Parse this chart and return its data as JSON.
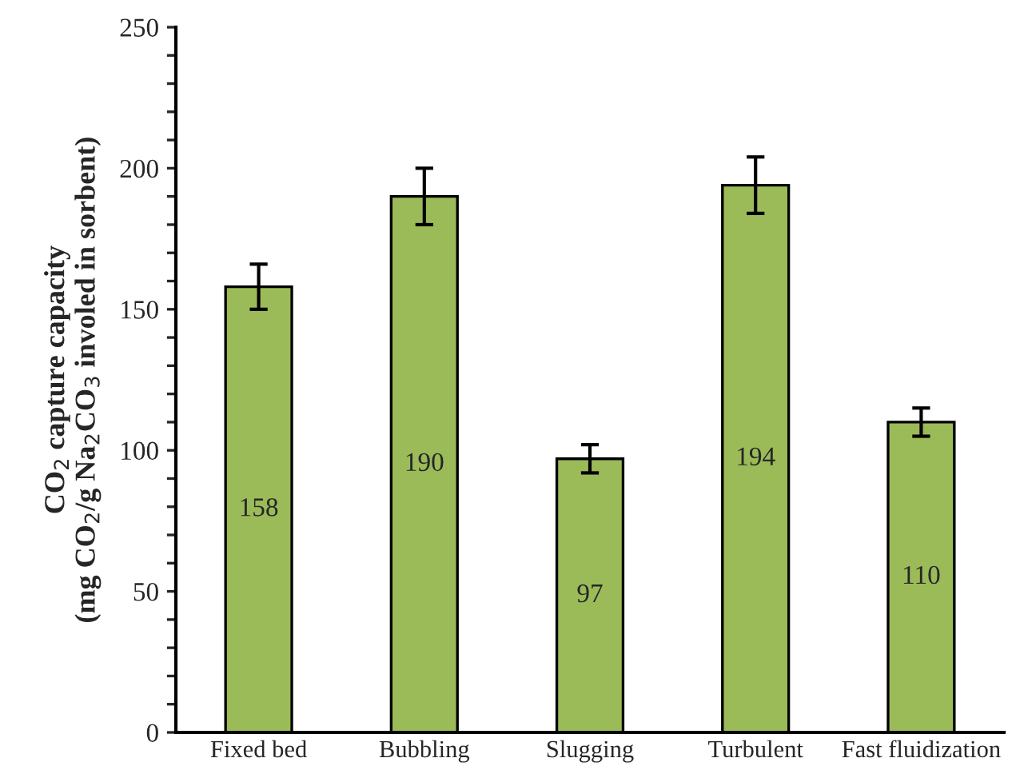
{
  "chart_data": {
    "type": "bar",
    "ylabel": "CO$_{2}$ capture capacity\n(mg CO$_{2}$/g Na$_{2}$CO$_{3}$ involed in sorbent)",
    "categories": [
      "Fixed bed",
      "Bubbling",
      "Slugging",
      "Turbulent",
      "Fast fluidization"
    ],
    "values": [
      158,
      190,
      97,
      194,
      110
    ],
    "errors": [
      8,
      10,
      5,
      10,
      5
    ],
    "color": "#9bbb59",
    "data_labels": true,
    "ylim": [
      0,
      250
    ],
    "yticks": [
      0,
      {
        "value": 10,
        "label": null
      },
      {
        "value": 20,
        "label": null
      },
      {
        "value": 30,
        "label": null
      },
      {
        "value": 40,
        "label": null
      },
      50,
      {
        "value": 60,
        "label": null
      },
      {
        "value": 70,
        "label": null
      },
      {
        "value": 80,
        "label": null
      },
      {
        "value": 90,
        "label": null
      },
      100,
      {
        "value": 110,
        "label": null
      },
      {
        "value": 120,
        "label": null
      },
      {
        "value": 130,
        "label": null
      },
      {
        "value": 140,
        "label": null
      },
      150,
      {
        "value": 160,
        "label": null
      },
      {
        "value": 170,
        "label": null
      },
      {
        "value": 180,
        "label": null
      },
      {
        "value": 190,
        "label": null
      },
      200,
      {
        "value": 210,
        "label": null
      },
      {
        "value": 220,
        "label": null
      },
      {
        "value": 230,
        "label": null
      },
      {
        "value": 240,
        "label": null
      },
      250
    ],
    "grid": false,
    "legend": false
  }
}
